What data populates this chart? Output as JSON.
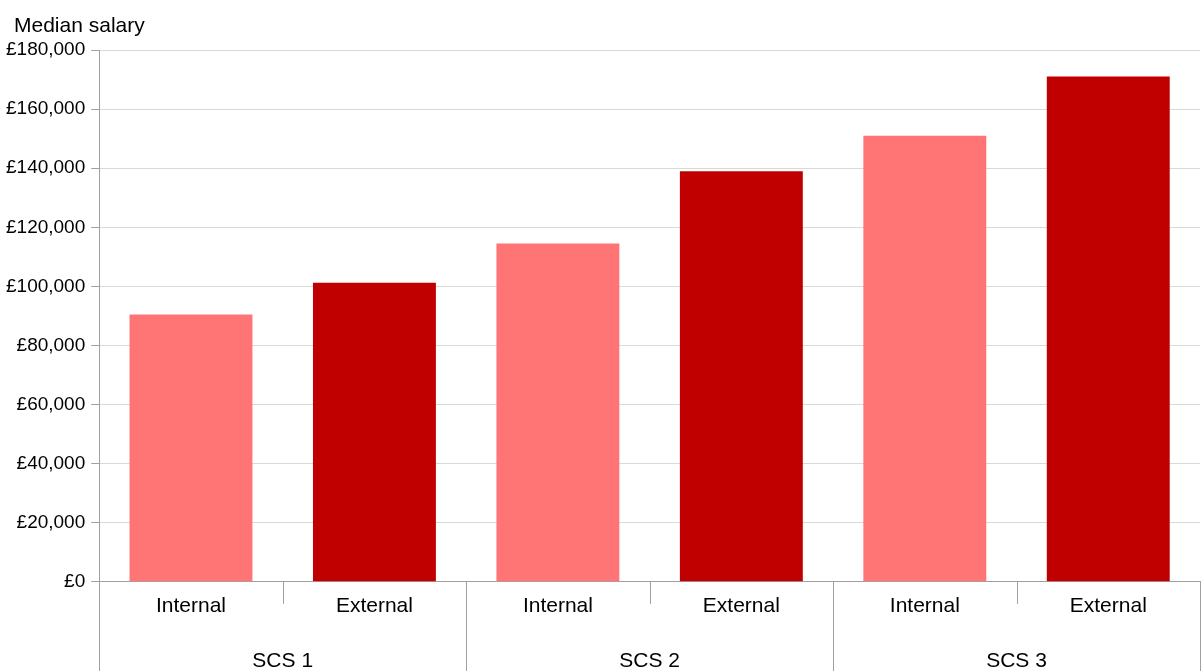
{
  "chart_data": {
    "type": "bar",
    "ylabel": "Median salary",
    "categories": [
      "Internal",
      "External",
      "Internal",
      "External",
      "Internal",
      "External"
    ],
    "values": [
      90500,
      101200,
      114500,
      139000,
      151000,
      171000
    ],
    "colors": [
      "#ff7575",
      "#c00000",
      "#ff7575",
      "#c00000",
      "#ff7575",
      "#c00000"
    ],
    "annotations": [
      "SCS 1",
      "SCS 2",
      "SCS 3"
    ],
    "ylim": [
      0,
      180000
    ],
    "yticks": [
      {
        "value": 0,
        "label": "£0"
      },
      {
        "value": 20000,
        "label": "£20,000"
      },
      {
        "value": 40000,
        "label": "£40,000"
      },
      {
        "value": 60000,
        "label": "£60,000"
      },
      {
        "value": 80000,
        "label": "£80,000"
      },
      {
        "value": 100000,
        "label": "£100,000"
      },
      {
        "value": 120000,
        "label": "£120,000"
      },
      {
        "value": 140000,
        "label": "£140,000"
      },
      {
        "value": 160000,
        "label": "£160,000"
      },
      {
        "value": 180000,
        "label": "£180,000"
      }
    ],
    "grid": "y",
    "legend": false
  }
}
